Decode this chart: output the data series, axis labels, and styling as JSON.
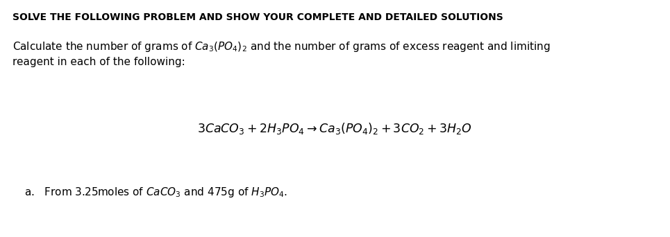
{
  "title": "SOLVE THE FOLLOWING PROBLEM AND SHOW YOUR COMPLETE AND DETAILED SOLUTIONS",
  "title_fontsize": 10.0,
  "body_line1": "Calculate the number of grams of $\\mathit{Ca_3(PO_4)_2}$ and the number of grams of excess reagent and limiting",
  "body_line2": "reagent in each of the following:",
  "equation": "$3CaCO_3 + 2H_3PO_4 \\rightarrow Ca_3(PO_4)_2 + 3CO_2 + 3H_2O$",
  "item_a": "a.   From 3.25moles of $\\mathit{CaCO_3}$ and 475g of $\\mathit{H_3PO_4}$.",
  "background_color": "#ffffff",
  "text_color": "#000000",
  "body_fontsize": 11.0,
  "equation_fontsize": 12.5,
  "item_fontsize": 11.0,
  "fig_width": 9.65,
  "fig_height": 3.42,
  "dpi": 100
}
